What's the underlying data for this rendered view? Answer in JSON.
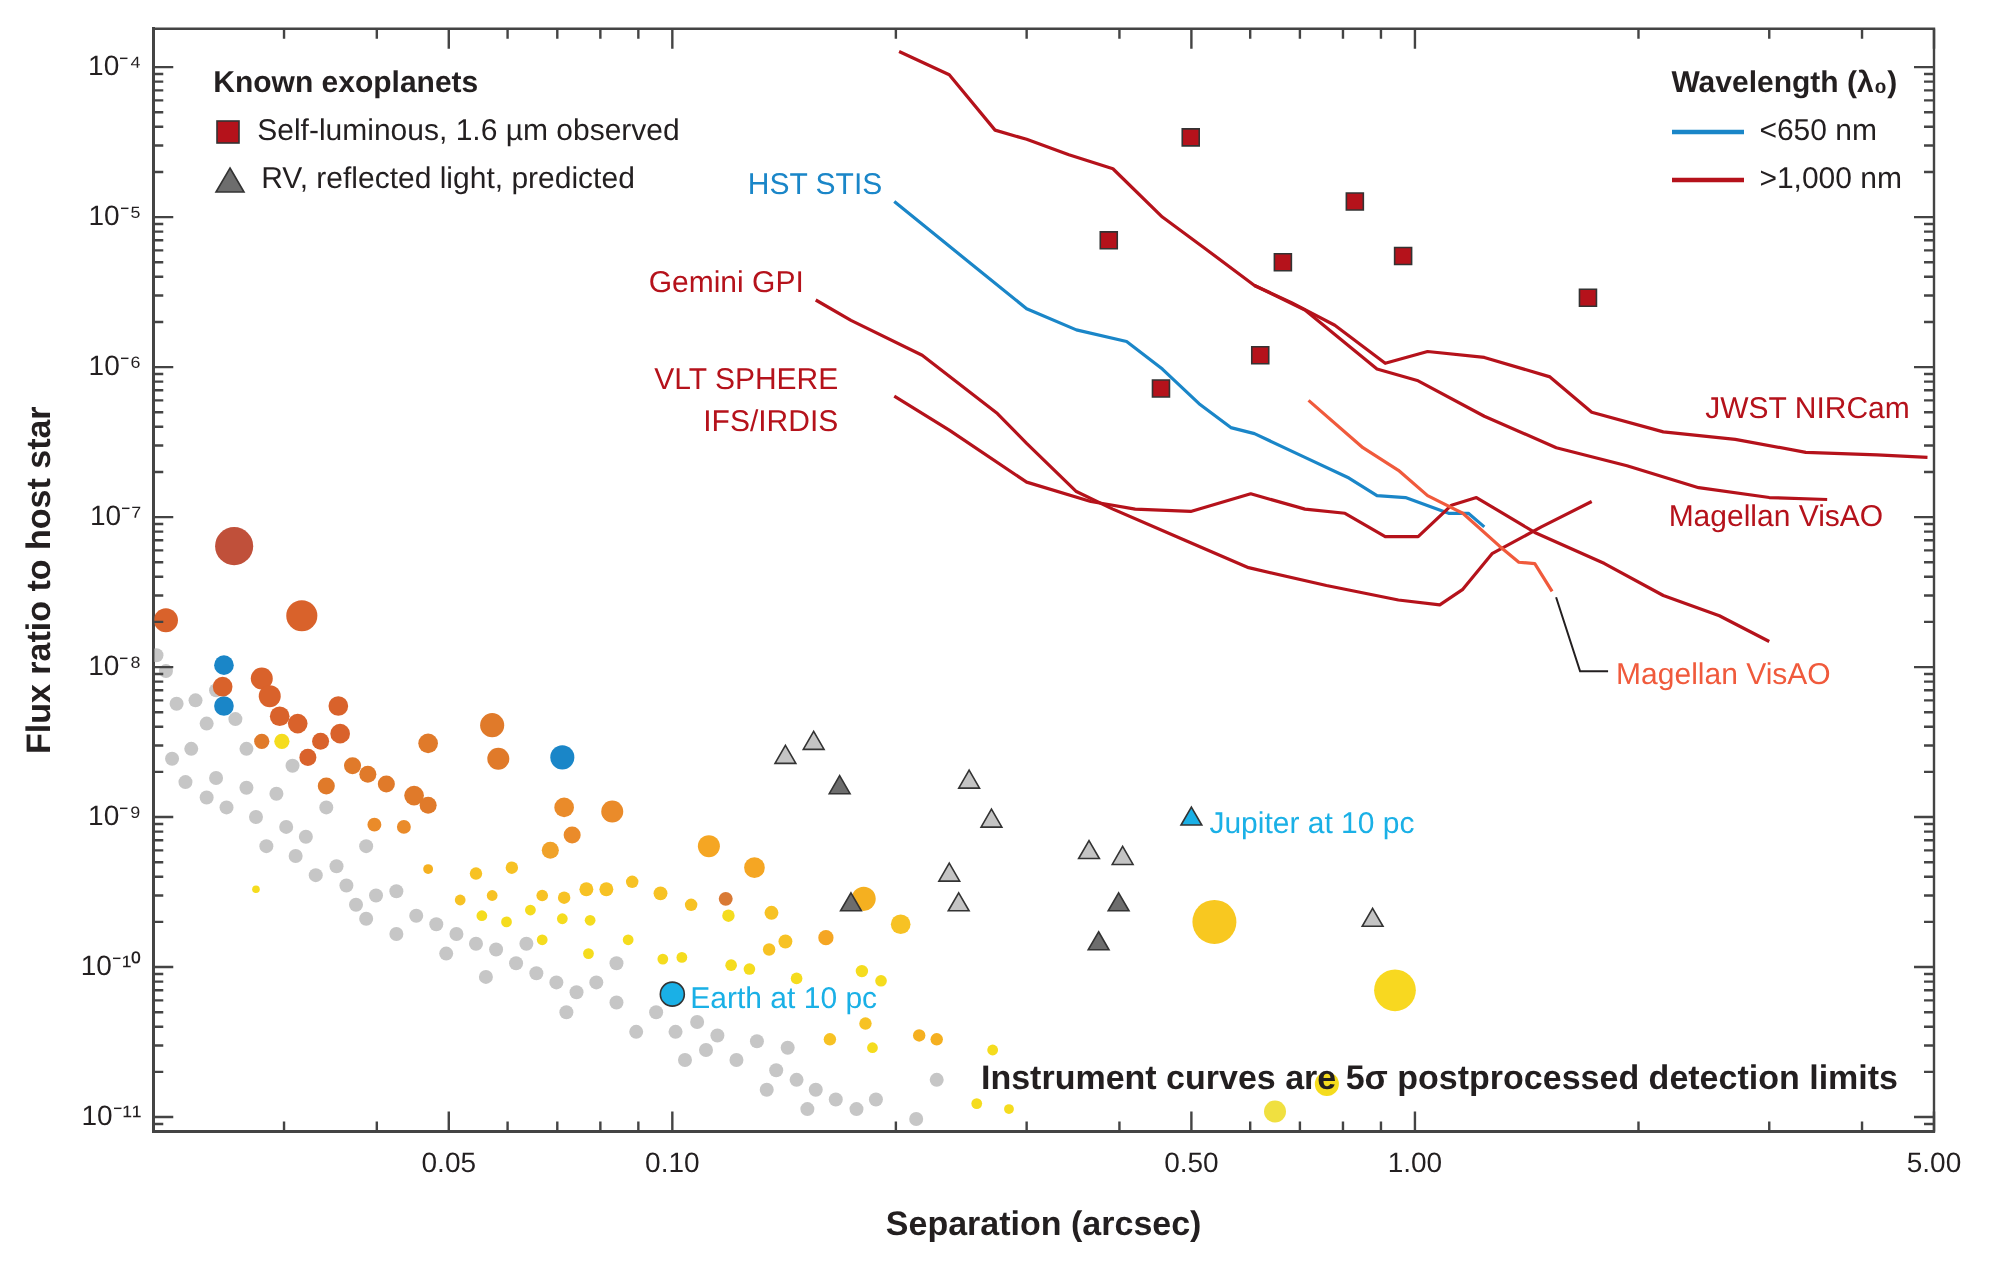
{
  "chart_data": {
    "type": "scatter",
    "xlabel": "Separation (arcsec)",
    "ylabel": "Flux ratio to host star",
    "legend_title": "Known exoplanets",
    "legend": "top",
    "log": "xy",
    "xlim": [
      0.02,
      5
    ],
    "ylim": [
      8e-12,
      0.00018
    ],
    "xticks": [
      {
        "value": 0.03,
        "label": null
      },
      {
        "value": 0.04,
        "label": null
      },
      0.05,
      {
        "value": 0.06,
        "label": null
      },
      {
        "value": 0.07,
        "label": null
      },
      {
        "value": 0.08,
        "label": null
      },
      {
        "value": 0.09,
        "label": null
      },
      {
        "value": 0.1,
        "label": "0.10"
      },
      {
        "value": 0.2,
        "label": null
      },
      {
        "value": 0.3,
        "label": null
      },
      {
        "value": 0.4,
        "label": null
      },
      {
        "value": 0.5,
        "label": "0.50"
      },
      {
        "value": 0.6,
        "label": null
      },
      {
        "value": 0.7,
        "label": null
      },
      {
        "value": 0.8,
        "label": null
      },
      {
        "value": 0.9,
        "label": null
      },
      {
        "value": 1,
        "label": "1.00"
      },
      {
        "value": 2,
        "label": null
      },
      {
        "value": 3,
        "label": null
      },
      {
        "value": 4,
        "label": null
      },
      {
        "value": 5,
        "label": "5.00"
      }
    ],
    "yticks": [
      {
        "value": 9e-12,
        "label": null
      },
      {
        "value": 1e-11,
        "label": "10⁻¹¹"
      },
      {
        "value": 2e-11,
        "label": null
      },
      {
        "value": 3e-11,
        "label": null
      },
      {
        "value": 4e-11,
        "label": null
      },
      {
        "value": 5e-11,
        "label": null
      },
      {
        "value": 6e-11,
        "label": null
      },
      {
        "value": 7e-11,
        "label": null
      },
      {
        "value": 8e-11,
        "label": null
      },
      {
        "value": 9e-11,
        "label": null
      },
      {
        "value": 1e-10,
        "label": "10⁻¹⁰"
      },
      {
        "value": 2e-10,
        "label": null
      },
      {
        "value": 3e-10,
        "label": null
      },
      {
        "value": 4e-10,
        "label": null
      },
      {
        "value": 5e-10,
        "label": null
      },
      {
        "value": 6e-10,
        "label": null
      },
      {
        "value": 7e-10,
        "label": null
      },
      {
        "value": 8e-10,
        "label": null
      },
      {
        "value": 9e-10,
        "label": null
      },
      {
        "value": 1e-09,
        "label": "10⁻⁹"
      },
      {
        "value": 2e-09,
        "label": null
      },
      {
        "value": 3e-09,
        "label": null
      },
      {
        "value": 4e-09,
        "label": null
      },
      {
        "value": 5e-09,
        "label": null
      },
      {
        "value": 6e-09,
        "label": null
      },
      {
        "value": 7e-09,
        "label": null
      },
      {
        "value": 8e-09,
        "label": null
      },
      {
        "value": 9e-09,
        "label": null
      },
      {
        "value": 1e-08,
        "label": "10⁻⁸"
      },
      {
        "value": 2e-08,
        "label": null
      },
      {
        "value": 3e-08,
        "label": null
      },
      {
        "value": 4e-08,
        "label": null
      },
      {
        "value": 5e-08,
        "label": null
      },
      {
        "value": 6e-08,
        "label": null
      },
      {
        "value": 7e-08,
        "label": null
      },
      {
        "value": 8e-08,
        "label": null
      },
      {
        "value": 9e-08,
        "label": null
      },
      {
        "value": 1e-07,
        "label": "10⁻⁷"
      },
      {
        "value": 2e-07,
        "label": null
      },
      {
        "value": 3e-07,
        "label": null
      },
      {
        "value": 4e-07,
        "label": null
      },
      {
        "value": 5e-07,
        "label": null
      },
      {
        "value": 6e-07,
        "label": null
      },
      {
        "value": 7e-07,
        "label": null
      },
      {
        "value": 8e-07,
        "label": null
      },
      {
        "value": 9e-07,
        "label": null
      },
      {
        "value": 1e-06,
        "label": "10⁻⁶"
      },
      {
        "value": 2e-06,
        "label": null
      },
      {
        "value": 3e-06,
        "label": null
      },
      {
        "value": 4e-06,
        "label": null
      },
      {
        "value": 5e-06,
        "label": null
      },
      {
        "value": 6e-06,
        "label": null
      },
      {
        "value": 7e-06,
        "label": null
      },
      {
        "value": 8e-06,
        "label": null
      },
      {
        "value": 9e-06,
        "label": null
      },
      {
        "value": 1e-05,
        "label": "10⁻⁵"
      },
      {
        "value": 2e-05,
        "label": null
      },
      {
        "value": 3e-05,
        "label": null
      },
      {
        "value": 4e-05,
        "label": null
      },
      {
        "value": 5e-05,
        "label": null
      },
      {
        "value": 6e-05,
        "label": null
      },
      {
        "value": 7e-05,
        "label": null
      },
      {
        "value": 8e-05,
        "label": null
      },
      {
        "value": 9e-05,
        "label": null
      },
      {
        "value": 0.0001,
        "label": "10⁻⁴"
      }
    ],
    "annotations": [
      "Wavelength (λ₀)",
      "Instrument curves are 5σ postprocessed detection limits",
      {
        "text": "HST STIS",
        "x": 0.199,
        "y": 1.27e-05
      },
      {
        "text": "Gemini GPI",
        "x": 0.156,
        "y": 2.8e-06
      },
      {
        "text": "VLT SPHERE\nIFS/IRDIS",
        "x": 0.199,
        "y": 6.4e-07
      },
      {
        "text": "JWST NIRCam",
        "x": 2.7,
        "y": 3.3e-07
      },
      {
        "text": "Magellan VisAO",
        "x": 2.41,
        "y": 1.57e-07
      },
      {
        "text": "Magellan VisAO",
        "x": 1.53,
        "y": 3.2e-08
      }
    ],
    "series": [
      {
        "type": "scatter",
        "marker": "circle",
        "color": "#c6c6c6",
        "x": [
          0.0202,
          0.0208,
          0.0215,
          0.0228,
          0.0236,
          0.0225,
          0.0212,
          0.0243,
          0.0258,
          0.0267,
          0.0221,
          0.0243,
          0.0236,
          0.0251,
          0.0267,
          0.0275,
          0.0293,
          0.0302,
          0.0284,
          0.0311,
          0.0331,
          0.0321,
          0.0353,
          0.0364,
          0.0387,
          0.0375,
          0.0399,
          0.0425,
          0.0452,
          0.0481,
          0.0387,
          0.0512,
          0.0544,
          0.0496,
          0.0579,
          0.0616,
          0.0656,
          0.0636,
          0.0698,
          0.0743,
          0.079,
          0.0841,
          0.072,
          0.0894,
          0.0951,
          0.101,
          0.108,
          0.115,
          0.111,
          0.122,
          0.13,
          0.138,
          0.147,
          0.134,
          0.156,
          0.166,
          0.177,
          0.188,
          0.213,
          0.227,
          0.143,
          0.0308,
          0.0342,
          0.0425,
          0.0561,
          0.0841,
          0.104,
          0.152
        ],
        "values": [
          1.2e-08,
          9.4e-09,
          5.7e-09,
          6e-09,
          4.2e-09,
          2.85e-09,
          2.45e-09,
          7e-09,
          4.5e-09,
          2.85e-09,
          1.71e-09,
          1.82e-09,
          1.35e-09,
          1.16e-09,
          1.57e-09,
          1e-09,
          1.43e-09,
          8.6e-10,
          6.4e-10,
          5.5e-10,
          4.1e-10,
          7.4e-10,
          4.7e-10,
          3.5e-10,
          6.4e-10,
          2.6e-10,
          3e-10,
          3.2e-10,
          2.2e-10,
          1.93e-10,
          2.1e-10,
          1.66e-10,
          1.43e-10,
          1.23e-10,
          1.31e-10,
          1.06e-10,
          9.1e-11,
          1.43e-10,
          7.9e-11,
          6.8e-11,
          7.9e-11,
          5.8e-11,
          5e-11,
          3.7e-11,
          5e-11,
          3.7e-11,
          4.3e-11,
          3.5e-11,
          2.8e-11,
          2.4e-11,
          3.2e-11,
          2.05e-11,
          1.77e-11,
          1.52e-11,
          1.52e-11,
          1.31e-11,
          1.13e-11,
          1.31e-11,
          9.7e-12,
          1.77e-11,
          2.9e-11,
          2.2e-09,
          1.16e-09,
          1.66e-10,
          8.6e-11,
          1.06e-10,
          2.4e-11,
          1.13e-11
        ]
      },
      {
        "type": "bubble",
        "x": [
          0.0257,
          0.0208,
          0.0317,
          0.0249,
          0.0249,
          0.0711,
          0.0248,
          0.028,
          0.0287,
          0.0296,
          0.0313,
          0.0355,
          0.0357,
          0.0336,
          0.0323,
          0.0371,
          0.0389,
          0.0412,
          0.0342,
          0.0298,
          0.028,
          0.0469,
          0.0572,
          0.0583,
          0.0449,
          0.0469,
          0.0397,
          0.0435,
          0.0715,
          0.083,
          0.0733,
          0.0685,
          0.112,
          0.129,
          0.0469,
          0.0544,
          0.0608,
          0.0518,
          0.0572,
          0.0668,
          0.0715,
          0.0766,
          0.0815,
          0.0883,
          0.0964,
          0.106,
          0.118,
          0.119,
          0.136,
          0.181,
          0.203,
          0.161,
          0.142,
          0.135,
          0.0971,
          0.103,
          0.12,
          0.127,
          0.147,
          0.18,
          0.191,
          0.182,
          0.163,
          0.215,
          0.227,
          0.186,
          0.27,
          0.257,
          0.284,
          0.0554,
          0.0598,
          0.0644,
          0.0668,
          0.0711,
          0.0771,
          0.0872,
          0.0775,
          0.0275,
          0.537,
          0.94,
          0.761,
          0.648
        ],
        "values": [
          6.4e-08,
          2.05e-08,
          2.2e-08,
          1.03e-08,
          5.5e-09,
          2.5e-09,
          7.4e-09,
          8.4e-09,
          6.4e-09,
          4.7e-09,
          4.2e-09,
          5.5e-09,
          3.6e-09,
          3.2e-09,
          2.5e-09,
          2.2e-09,
          1.93e-09,
          1.66e-09,
          1.61e-09,
          3.2e-09,
          3.2e-09,
          3.1e-09,
          4.1e-09,
          2.45e-09,
          1.39e-09,
          1.2e-09,
          8.9e-10,
          8.6e-10,
          1.16e-09,
          1.09e-09,
          7.6e-10,
          6e-10,
          6.4e-10,
          4.6e-10,
          4.5e-10,
          4.2e-10,
          4.6e-10,
          2.8e-10,
          3e-10,
          3e-10,
          2.9e-10,
          3.3e-10,
          3.3e-10,
          3.7e-10,
          3.1e-10,
          2.6e-10,
          2.85e-10,
          2.2e-10,
          2.3e-10,
          2.85e-10,
          1.93e-10,
          1.57e-10,
          1.48e-10,
          1.31e-10,
          1.13e-10,
          1.16e-10,
          1.03e-10,
          9.7e-11,
          8.4e-11,
          9.4e-11,
          8.1e-11,
          4.2e-11,
          3.3e-11,
          3.5e-11,
          3.3e-11,
          2.9e-11,
          2.8e-11,
          1.23e-11,
          1.13e-11,
          2.2e-10,
          2e-10,
          2.4e-10,
          1.52e-10,
          2.1e-10,
          1.23e-10,
          1.52e-10,
          2.05e-10,
          3.3e-10,
          2e-10,
          7e-11,
          1.66e-11,
          1.09e-11
        ],
        "sizes": [
          0.75,
          0.3,
          0.5,
          0.2,
          0.2,
          0.3,
          0.2,
          0.25,
          0.25,
          0.2,
          0.2,
          0.2,
          0.2,
          0.15,
          0.15,
          0.15,
          0.15,
          0.15,
          0.15,
          0.12,
          0.12,
          0.2,
          0.3,
          0.25,
          0.2,
          0.15,
          0.1,
          0.1,
          0.2,
          0.25,
          0.15,
          0.15,
          0.25,
          0.22,
          0.05,
          0.08,
          0.08,
          0.06,
          0.06,
          0.07,
          0.08,
          0.1,
          0.1,
          0.08,
          0.1,
          0.08,
          0.1,
          0.08,
          0.1,
          0.3,
          0.2,
          0.12,
          0.1,
          0.08,
          0.06,
          0.06,
          0.07,
          0.07,
          0.07,
          0.08,
          0.07,
          0.08,
          0.08,
          0.08,
          0.08,
          0.06,
          0.06,
          0.06,
          0.05,
          0.06,
          0.06,
          0.06,
          0.06,
          0.06,
          0.06,
          0.06,
          0.06,
          0.03,
          1,
          0.9,
          0.3,
          0.25
        ],
        "colors": [
          "#c0503a",
          "#d9622b",
          "#d9622b",
          "#1a86c8",
          "#1a86c8",
          "#1a86c8",
          "#d9622b",
          "#d9622b",
          "#d9622b",
          "#d9622b",
          "#d9622b",
          "#d9622b",
          "#d9622b",
          "#d9622b",
          "#d9622b",
          "#e07a2a",
          "#e07a2a",
          "#e07a2a",
          "#e07a2a",
          "#f5dc1e",
          "#e07a2a",
          "#e07a2a",
          "#e07a2a",
          "#e07a2a",
          "#e07a2a",
          "#e07a2a",
          "#ea8b2a",
          "#ea8b2a",
          "#ea8b2a",
          "#ea8b2a",
          "#ea8b2a",
          "#f0a22a",
          "#f5a623",
          "#f5a623",
          "#f5b020",
          "#f7c224",
          "#f7c224",
          "#f7c224",
          "#f7c224",
          "#f7c224",
          "#f7c224",
          "#f7c224",
          "#f7c224",
          "#f7c224",
          "#f7c224",
          "#f7c224",
          "#d97a35",
          "#f5dc1e",
          "#f7c224",
          "#f5b020",
          "#f7c224",
          "#f5a623",
          "#f7c224",
          "#f7c224",
          "#f5dc1e",
          "#f5dc1e",
          "#f5dc1e",
          "#f5dc1e",
          "#f5dc1e",
          "#f5dc1e",
          "#f5dc1e",
          "#f7c224",
          "#f7c224",
          "#f5b020",
          "#f5b020",
          "#f5dc1e",
          "#f5dc1e",
          "#f5dc1e",
          "#f5dc1e",
          "#f5dc1e",
          "#f5dc1e",
          "#f5dc1e",
          "#f5dc1e",
          "#f5dc1e",
          "#f5dc1e",
          "#f5dc1e",
          "#f5dc1e",
          "#f5dc1e",
          "#f8c820",
          "#f8d820",
          "#f5dc1e",
          "#f0e040"
        ]
      },
      {
        "type": "scatter",
        "name": "RV, reflected light, predicted",
        "marker": "triangle",
        "color": "#6d6d6d",
        "x": [
          0.142,
          0.155,
          0.168,
          0.251,
          0.269,
          0.236,
          0.243,
          0.174,
          0.364,
          0.404,
          0.399,
          0.375,
          0.877
        ],
        "values": [
          2.5e-09,
          3.1e-09,
          1.57e-09,
          1.71e-09,
          9.4e-10,
          4.1e-10,
          2.6e-10,
          2.6e-10,
          5.8e-10,
          5.3e-10,
          2.6e-10,
          1.43e-10,
          2.05e-10
        ],
        "colors": [
          "#c4c4c4",
          "#c4c4c4",
          "#6d6d6d",
          "#c4c4c4",
          "#c4c4c4",
          "#c4c4c4",
          "#c4c4c4",
          "#6d6d6d",
          "#c4c4c4",
          "#c4c4c4",
          "#6d6d6d",
          "#6d6d6d",
          "#c4c4c4"
        ]
      },
      {
        "type": "scatter",
        "name": "Self-luminous, 1.6 µm observed",
        "marker": "square",
        "color": "#b5121b",
        "x": [
          0.499,
          0.387,
          0.664,
          0.83,
          0.964,
          0.619,
          0.455,
          1.71
        ],
        "values": [
          3.4e-05,
          7e-06,
          5e-06,
          1.27e-05,
          5.5e-06,
          1.2e-06,
          7.2e-07,
          2.9e-06
        ]
      },
      {
        "type": "scatter",
        "name": "Earth at 10 pc",
        "marker": "circle",
        "color": "#1ab0e6",
        "x": [
          0.1
        ],
        "values": [
          6.6e-11
        ]
      },
      {
        "type": "scatter",
        "name": "Jupiter at 10 pc",
        "marker": "triangle",
        "color": "#1ab0e6",
        "x": [
          0.5
        ],
        "values": [
          9.7e-10
        ]
      },
      {
        "type": "line",
        "name": "<650 nm",
        "color": "#1a86c8",
        "x": [
          0.199,
          0.251,
          0.3,
          0.35,
          0.409,
          0.457,
          0.512,
          0.565,
          0.608,
          0.711,
          0.815,
          0.889,
          0.971,
          1.11,
          1.18,
          1.24
        ],
        "values": [
          1.27e-05,
          5e-06,
          2.45e-06,
          1.77e-06,
          1.48e-06,
          9.7e-07,
          5.7e-07,
          3.95e-07,
          3.6e-07,
          2.5e-07,
          1.82e-07,
          1.39e-07,
          1.35e-07,
          1.06e-07,
          1.06e-07,
          8.6e-08
        ]
      },
      {
        "type": "line",
        "name": ">1,000 nm",
        "color": "#b5121b",
        "x": [
          0.202,
          0.236,
          0.272,
          0.3,
          0.342,
          0.392,
          0.457,
          0.521,
          0.608,
          0.681,
          0.78,
          0.912,
          1.04,
          1.24,
          1.52,
          1.73,
          2.16,
          2.7,
          3.36,
          4.19,
          4.9
        ],
        "values": [
          0.000127,
          8.9e-05,
          3.8e-05,
          3.3e-05,
          2.6e-05,
          2.1e-05,
          1e-05,
          6.2e-06,
          3.5e-06,
          2.7e-06,
          1.9e-06,
          1.06e-06,
          1.27e-06,
          1.16e-06,
          8.6e-07,
          5e-07,
          3.7e-07,
          3.3e-07,
          2.7e-07,
          2.6e-07,
          2.5e-07
        ]
      },
      {
        "type": "line",
        "color": "#b5121b",
        "x": [
          0.608,
          0.711,
          0.889,
          1.01,
          1.24,
          1.55,
          1.93,
          2.41,
          3,
          3.59
        ],
        "values": [
          3.5e-06,
          2.4e-06,
          9.7e-07,
          8.1e-07,
          4.7e-07,
          2.9e-07,
          2.2e-07,
          1.57e-07,
          1.35e-07,
          1.31e-07
        ]
      },
      {
        "type": "line",
        "color": "#b5121b",
        "x": [
          0.156,
          0.174,
          0.217,
          0.274,
          0.3,
          0.35,
          0.392,
          0.49,
          0.597,
          0.76,
          0.95,
          1.08,
          1.16,
          1.27,
          1.48,
          1.73
        ],
        "values": [
          2.8e-06,
          2.05e-06,
          1.2e-06,
          4.9e-07,
          3.1e-07,
          1.48e-07,
          1.13e-07,
          7e-08,
          4.6e-08,
          3.5e-08,
          2.8e-08,
          2.6e-08,
          3.3e-08,
          5.7e-08,
          8.6e-08,
          1.27e-07
        ]
      },
      {
        "type": "line",
        "color": "#b5121b",
        "x": [
          0.199,
          0.236,
          0.3,
          0.366,
          0.42,
          0.499,
          0.601,
          0.711,
          0.805,
          0.912,
          1.01,
          1.12,
          1.21,
          1.45,
          1.8,
          2.16,
          2.57,
          3
        ],
        "values": [
          6.4e-07,
          3.8e-07,
          1.71e-07,
          1.27e-07,
          1.13e-07,
          1.09e-07,
          1.43e-07,
          1.13e-07,
          1.06e-07,
          7.4e-08,
          7.4e-08,
          1.2e-07,
          1.35e-07,
          7.9e-08,
          4.9e-08,
          3e-08,
          2.2e-08,
          1.48e-08
        ]
      },
      {
        "type": "line",
        "color": "#f05a3c",
        "x": [
          0.719,
          0.851,
          0.95,
          1.04,
          1.16,
          1.3,
          1.38,
          1.45,
          1.53
        ],
        "values": [
          6e-07,
          2.9e-07,
          2.05e-07,
          1.39e-07,
          1.06e-07,
          6.4e-08,
          5e-08,
          4.9e-08,
          3.2e-08
        ]
      }
    ]
  }
}
